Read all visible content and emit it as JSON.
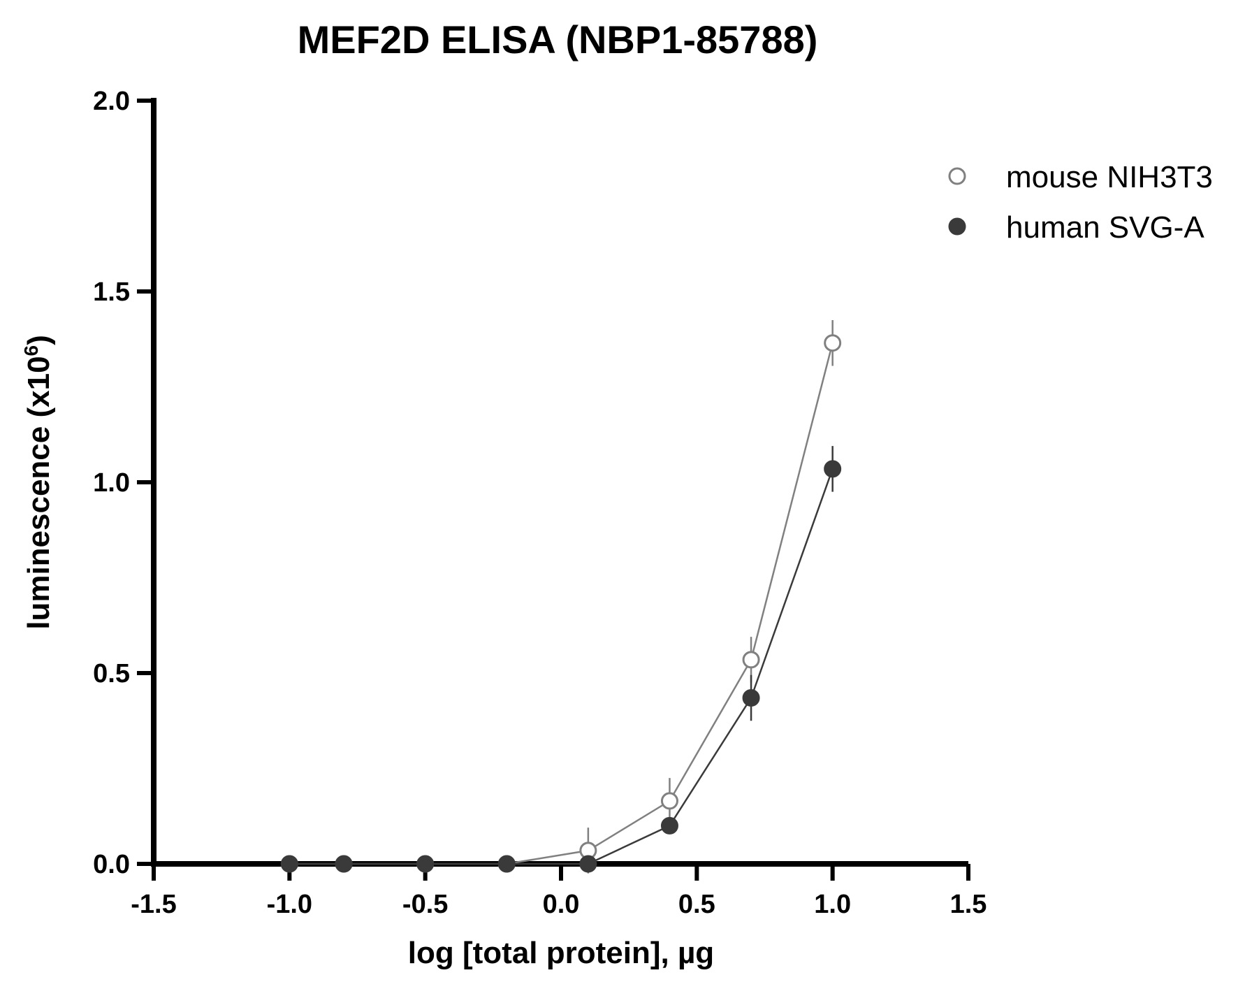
{
  "chart_data": {
    "type": "line",
    "title": "MEF2D ELISA (NBP1-85788)",
    "xlabel": "log [total protein], µg",
    "ylabel_main": "luminescence (x10",
    "ylabel_sup": "6",
    "ylabel_close": ")",
    "xlim": [
      -1.5,
      1.5
    ],
    "ylim": [
      0,
      2.0
    ],
    "x_ticks": [
      -1.5,
      -1.0,
      -0.5,
      0.0,
      0.5,
      1.0,
      1.5
    ],
    "x_tick_labels": [
      "-1.5",
      "-1.0",
      "-0.5",
      "0.0",
      "0.5",
      "1.0",
      "1.5"
    ],
    "y_ticks": [
      0,
      0.5,
      1.0,
      1.5,
      2.0
    ],
    "y_tick_labels": [
      "0.0",
      "0.5",
      "1.0",
      "1.5",
      "2.0"
    ],
    "grid": false,
    "legend_position": "top-right",
    "series": [
      {
        "name": "mouse NIH3T3",
        "marker": "open-circle",
        "color": "#808080",
        "x": [
          -1.0,
          -0.8,
          -0.5,
          -0.2,
          0.1,
          0.4,
          0.7,
          1.0
        ],
        "y": [
          0.0,
          0.0,
          0.0,
          0.0,
          0.035,
          0.165,
          0.535,
          1.365
        ],
        "err": [
          0.0,
          0.0,
          0.0,
          0.0,
          0.06,
          0.06,
          0.06,
          0.06
        ]
      },
      {
        "name": "human SVG-A",
        "marker": "filled-circle",
        "color": "#3a3a3a",
        "x": [
          -1.0,
          -0.8,
          -0.5,
          -0.2,
          0.1,
          0.4,
          0.7,
          1.0
        ],
        "y": [
          0.0,
          0.0,
          0.0,
          0.0,
          0.0,
          0.1,
          0.435,
          1.035
        ],
        "err": [
          0.0,
          0.0,
          0.0,
          0.0,
          0.0,
          0.0,
          0.06,
          0.06
        ]
      }
    ]
  }
}
